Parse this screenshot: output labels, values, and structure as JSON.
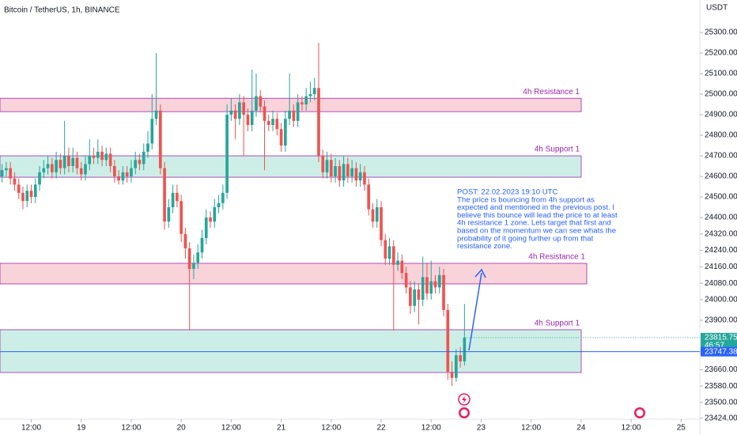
{
  "chart_data": {
    "type": "candlestick",
    "title": "Bitcoin / TetherUS, 1h, BINANCE",
    "currency": "USDT",
    "up_color": "#26a69a",
    "down_color": "#ef5350",
    "ylim": [
      23419,
      25458
    ],
    "yticks": [
      {
        "value": 25300,
        "label": "25300.00"
      },
      {
        "value": 25200,
        "label": "25200.00"
      },
      {
        "value": 25100,
        "label": "25100.00"
      },
      {
        "value": 25000,
        "label": "25000.00"
      },
      {
        "value": 24900,
        "label": "24900.00"
      },
      {
        "value": 24800,
        "label": "24800.00"
      },
      {
        "value": 24700,
        "label": "24700.00"
      },
      {
        "value": 24600,
        "label": "24600.00"
      },
      {
        "value": 24500,
        "label": "24500.00"
      },
      {
        "value": 24400,
        "label": "24400.00"
      },
      {
        "value": 24320,
        "label": "24320.00"
      },
      {
        "value": 24240,
        "label": "24240.00"
      },
      {
        "value": 24160,
        "label": "24160.00"
      },
      {
        "value": 24080,
        "label": "24080.00"
      },
      {
        "value": 24000,
        "label": "24000.00"
      },
      {
        "value": 23900,
        "label": "23900.00"
      },
      {
        "value": 23660,
        "label": "23660.00"
      },
      {
        "value": 23580,
        "label": "23580.00"
      },
      {
        "value": 23500,
        "label": "23500.00"
      },
      {
        "value": 23424,
        "label": "23424.00"
      }
    ],
    "xlim": [
      -0.5,
      167.5
    ],
    "xticks": [
      {
        "value": 7,
        "label": "12:00"
      },
      {
        "value": 19,
        "label": "19"
      },
      {
        "value": 31,
        "label": "12:00"
      },
      {
        "value": 43,
        "label": "20"
      },
      {
        "value": 55,
        "label": "12:00"
      },
      {
        "value": 67,
        "label": "21"
      },
      {
        "value": 79,
        "label": "12:00"
      },
      {
        "value": 91,
        "label": "22"
      },
      {
        "value": 103,
        "label": "12:00"
      },
      {
        "value": 115,
        "label": "23"
      },
      {
        "value": 127,
        "label": "12:00"
      },
      {
        "value": 139,
        "label": "24"
      },
      {
        "value": 151,
        "label": "12:00"
      },
      {
        "value": 163,
        "label": "25"
      }
    ],
    "candles": [
      [
        24600,
        24660,
        24570,
        24630
      ],
      [
        24630,
        24670,
        24600,
        24640
      ],
      [
        24640,
        24670,
        24560,
        24590
      ],
      [
        24590,
        24620,
        24530,
        24560
      ],
      [
        24560,
        24590,
        24490,
        24520
      ],
      [
        24520,
        24550,
        24440,
        24480
      ],
      [
        24480,
        24560,
        24450,
        24530
      ],
      [
        24530,
        24560,
        24470,
        24500
      ],
      [
        24500,
        24590,
        24470,
        24560
      ],
      [
        24560,
        24650,
        24530,
        24620
      ],
      [
        24620,
        24680,
        24590,
        24640
      ],
      [
        24640,
        24700,
        24610,
        24660
      ],
      [
        24660,
        24690,
        24590,
        24620
      ],
      [
        24620,
        24720,
        24590,
        24680
      ],
      [
        24680,
        24710,
        24610,
        24640
      ],
      [
        24640,
        24870,
        24610,
        24700
      ],
      [
        24700,
        24740,
        24620,
        24650
      ],
      [
        24650,
        24740,
        24620,
        24690
      ],
      [
        24690,
        24720,
        24610,
        24640
      ],
      [
        24640,
        24670,
        24580,
        24610
      ],
      [
        24610,
        24700,
        24580,
        24660
      ],
      [
        24660,
        24780,
        24630,
        24700
      ],
      [
        24700,
        24740,
        24660,
        24690
      ],
      [
        24690,
        24780,
        24660,
        24720
      ],
      [
        24720,
        24750,
        24650,
        24680
      ],
      [
        24680,
        24740,
        24650,
        24710
      ],
      [
        24710,
        24740,
        24620,
        24650
      ],
      [
        24650,
        24680,
        24570,
        24600
      ],
      [
        24600,
        24630,
        24560,
        24580
      ],
      [
        24580,
        24650,
        24560,
        24620
      ],
      [
        24620,
        24650,
        24570,
        24600
      ],
      [
        24600,
        24680,
        24570,
        24640
      ],
      [
        24640,
        24720,
        24610,
        24680
      ],
      [
        24680,
        24710,
        24630,
        24660
      ],
      [
        24660,
        24760,
        24630,
        24720
      ],
      [
        24720,
        24820,
        24690,
        24760
      ],
      [
        24760,
        25000,
        24730,
        24880
      ],
      [
        24880,
        25200,
        24850,
        24920
      ],
      [
        24920,
        24950,
        24610,
        24640
      ],
      [
        24640,
        24670,
        24340,
        24380
      ],
      [
        24380,
        24490,
        24350,
        24450
      ],
      [
        24450,
        24560,
        24420,
        24520
      ],
      [
        24520,
        24560,
        24450,
        24480
      ],
      [
        24480,
        24510,
        24280,
        24320
      ],
      [
        24320,
        24350,
        24200,
        24250
      ],
      [
        24250,
        24280,
        23850,
        24150
      ],
      [
        24150,
        24220,
        24100,
        24180
      ],
      [
        24180,
        24270,
        24150,
        24230
      ],
      [
        24230,
        24340,
        24200,
        24300
      ],
      [
        24300,
        24440,
        24270,
        24400
      ],
      [
        24400,
        24430,
        24350,
        24380
      ],
      [
        24380,
        24490,
        24350,
        24450
      ],
      [
        24450,
        24510,
        24420,
        24470
      ],
      [
        24470,
        24560,
        24440,
        24520
      ],
      [
        24520,
        24950,
        24490,
        24900
      ],
      [
        24900,
        24980,
        24870,
        24920
      ],
      [
        24920,
        24950,
        24780,
        24880
      ],
      [
        24880,
        25000,
        24850,
        24960
      ],
      [
        24960,
        24990,
        24700,
        24900
      ],
      [
        24900,
        24930,
        24820,
        24850
      ],
      [
        24850,
        25120,
        24820,
        24920
      ],
      [
        24920,
        25100,
        24890,
        24990
      ],
      [
        24990,
        25020,
        24910,
        24940
      ],
      [
        24940,
        24970,
        24630,
        24870
      ],
      [
        24870,
        24900,
        24820,
        24850
      ],
      [
        24850,
        24920,
        24820,
        24880
      ],
      [
        24880,
        24910,
        24800,
        24830
      ],
      [
        24830,
        24860,
        24720,
        24750
      ],
      [
        24750,
        24920,
        24720,
        24880
      ],
      [
        24880,
        25100,
        24850,
        24920
      ],
      [
        24920,
        24950,
        24840,
        24870
      ],
      [
        24870,
        25000,
        24840,
        24960
      ],
      [
        24960,
        24990,
        24920,
        24950
      ],
      [
        24950,
        25030,
        24920,
        24990
      ],
      [
        24990,
        25060,
        24960,
        25000
      ],
      [
        25000,
        25080,
        24970,
        25030
      ],
      [
        25030,
        25250,
        24670,
        24700
      ],
      [
        24700,
        24730,
        24590,
        24620
      ],
      [
        24620,
        24720,
        24590,
        24680
      ],
      [
        24680,
        24710,
        24570,
        24600
      ],
      [
        24600,
        24690,
        24570,
        24650
      ],
      [
        24650,
        24680,
        24550,
        24580
      ],
      [
        24580,
        24700,
        24550,
        24660
      ],
      [
        24660,
        24690,
        24570,
        24600
      ],
      [
        24600,
        24680,
        24570,
        24640
      ],
      [
        24640,
        24670,
        24550,
        24580
      ],
      [
        24580,
        24660,
        24550,
        24620
      ],
      [
        24620,
        24650,
        24530,
        24560
      ],
      [
        24560,
        24590,
        24410,
        24440
      ],
      [
        24440,
        24470,
        24350,
        24380
      ],
      [
        24380,
        24490,
        24350,
        24450
      ],
      [
        24450,
        24480,
        24260,
        24290
      ],
      [
        24290,
        24320,
        24170,
        24200
      ],
      [
        24200,
        24300,
        24170,
        24260
      ],
      [
        24260,
        24290,
        23850,
        24170
      ],
      [
        24170,
        24230,
        24140,
        24190
      ],
      [
        24190,
        24220,
        24100,
        24130
      ],
      [
        24130,
        24160,
        24030,
        24060
      ],
      [
        24060,
        24090,
        23930,
        23970
      ],
      [
        23970,
        24090,
        23940,
        24050
      ],
      [
        24050,
        24080,
        23880,
        24000
      ],
      [
        24000,
        24210,
        23970,
        24110
      ],
      [
        24110,
        24180,
        24000,
        24030
      ],
      [
        24030,
        24190,
        24000,
        24090
      ],
      [
        24090,
        24120,
        24030,
        24060
      ],
      [
        24060,
        24160,
        24030,
        24120
      ],
      [
        24120,
        24150,
        23920,
        23950
      ],
      [
        23950,
        23980,
        23610,
        23650
      ],
      [
        23650,
        23700,
        23580,
        23620
      ],
      [
        23620,
        23760,
        23600,
        23730
      ],
      [
        23730,
        23770,
        23670,
        23700
      ],
      [
        23700,
        23980,
        23680,
        23815.75
      ]
    ],
    "zones": [
      {
        "label": "4h Resistance 1",
        "top": 24980,
        "bottom": 24915,
        "fill": "#f9d3da"
      },
      {
        "label": "4h Support 1",
        "top": 24700,
        "bottom": 24596,
        "fill": "#cdeee6"
      },
      {
        "label": "4h Resistance 1",
        "top": 24177,
        "bottom": 24077,
        "fill": "#f9d3da"
      },
      {
        "label": "4h Support 1",
        "top": 23854,
        "bottom": 23646,
        "fill": "#cdeee6"
      }
    ],
    "last_price": 23815.75,
    "countdown": "46:57",
    "line_price": 23747.38,
    "annotation": [
      "POST: 22.02.2023 19:10 UTC",
      "The price is bouncing from 4h support as",
      "expected and mentioned in the previous post. I",
      "believe this bounce will lead the price to at least",
      "4h resistance 1 zone. Lets target that first and",
      "based on the momentum we can see whats the",
      "probability of it going further up from that",
      "resistance zone."
    ]
  }
}
